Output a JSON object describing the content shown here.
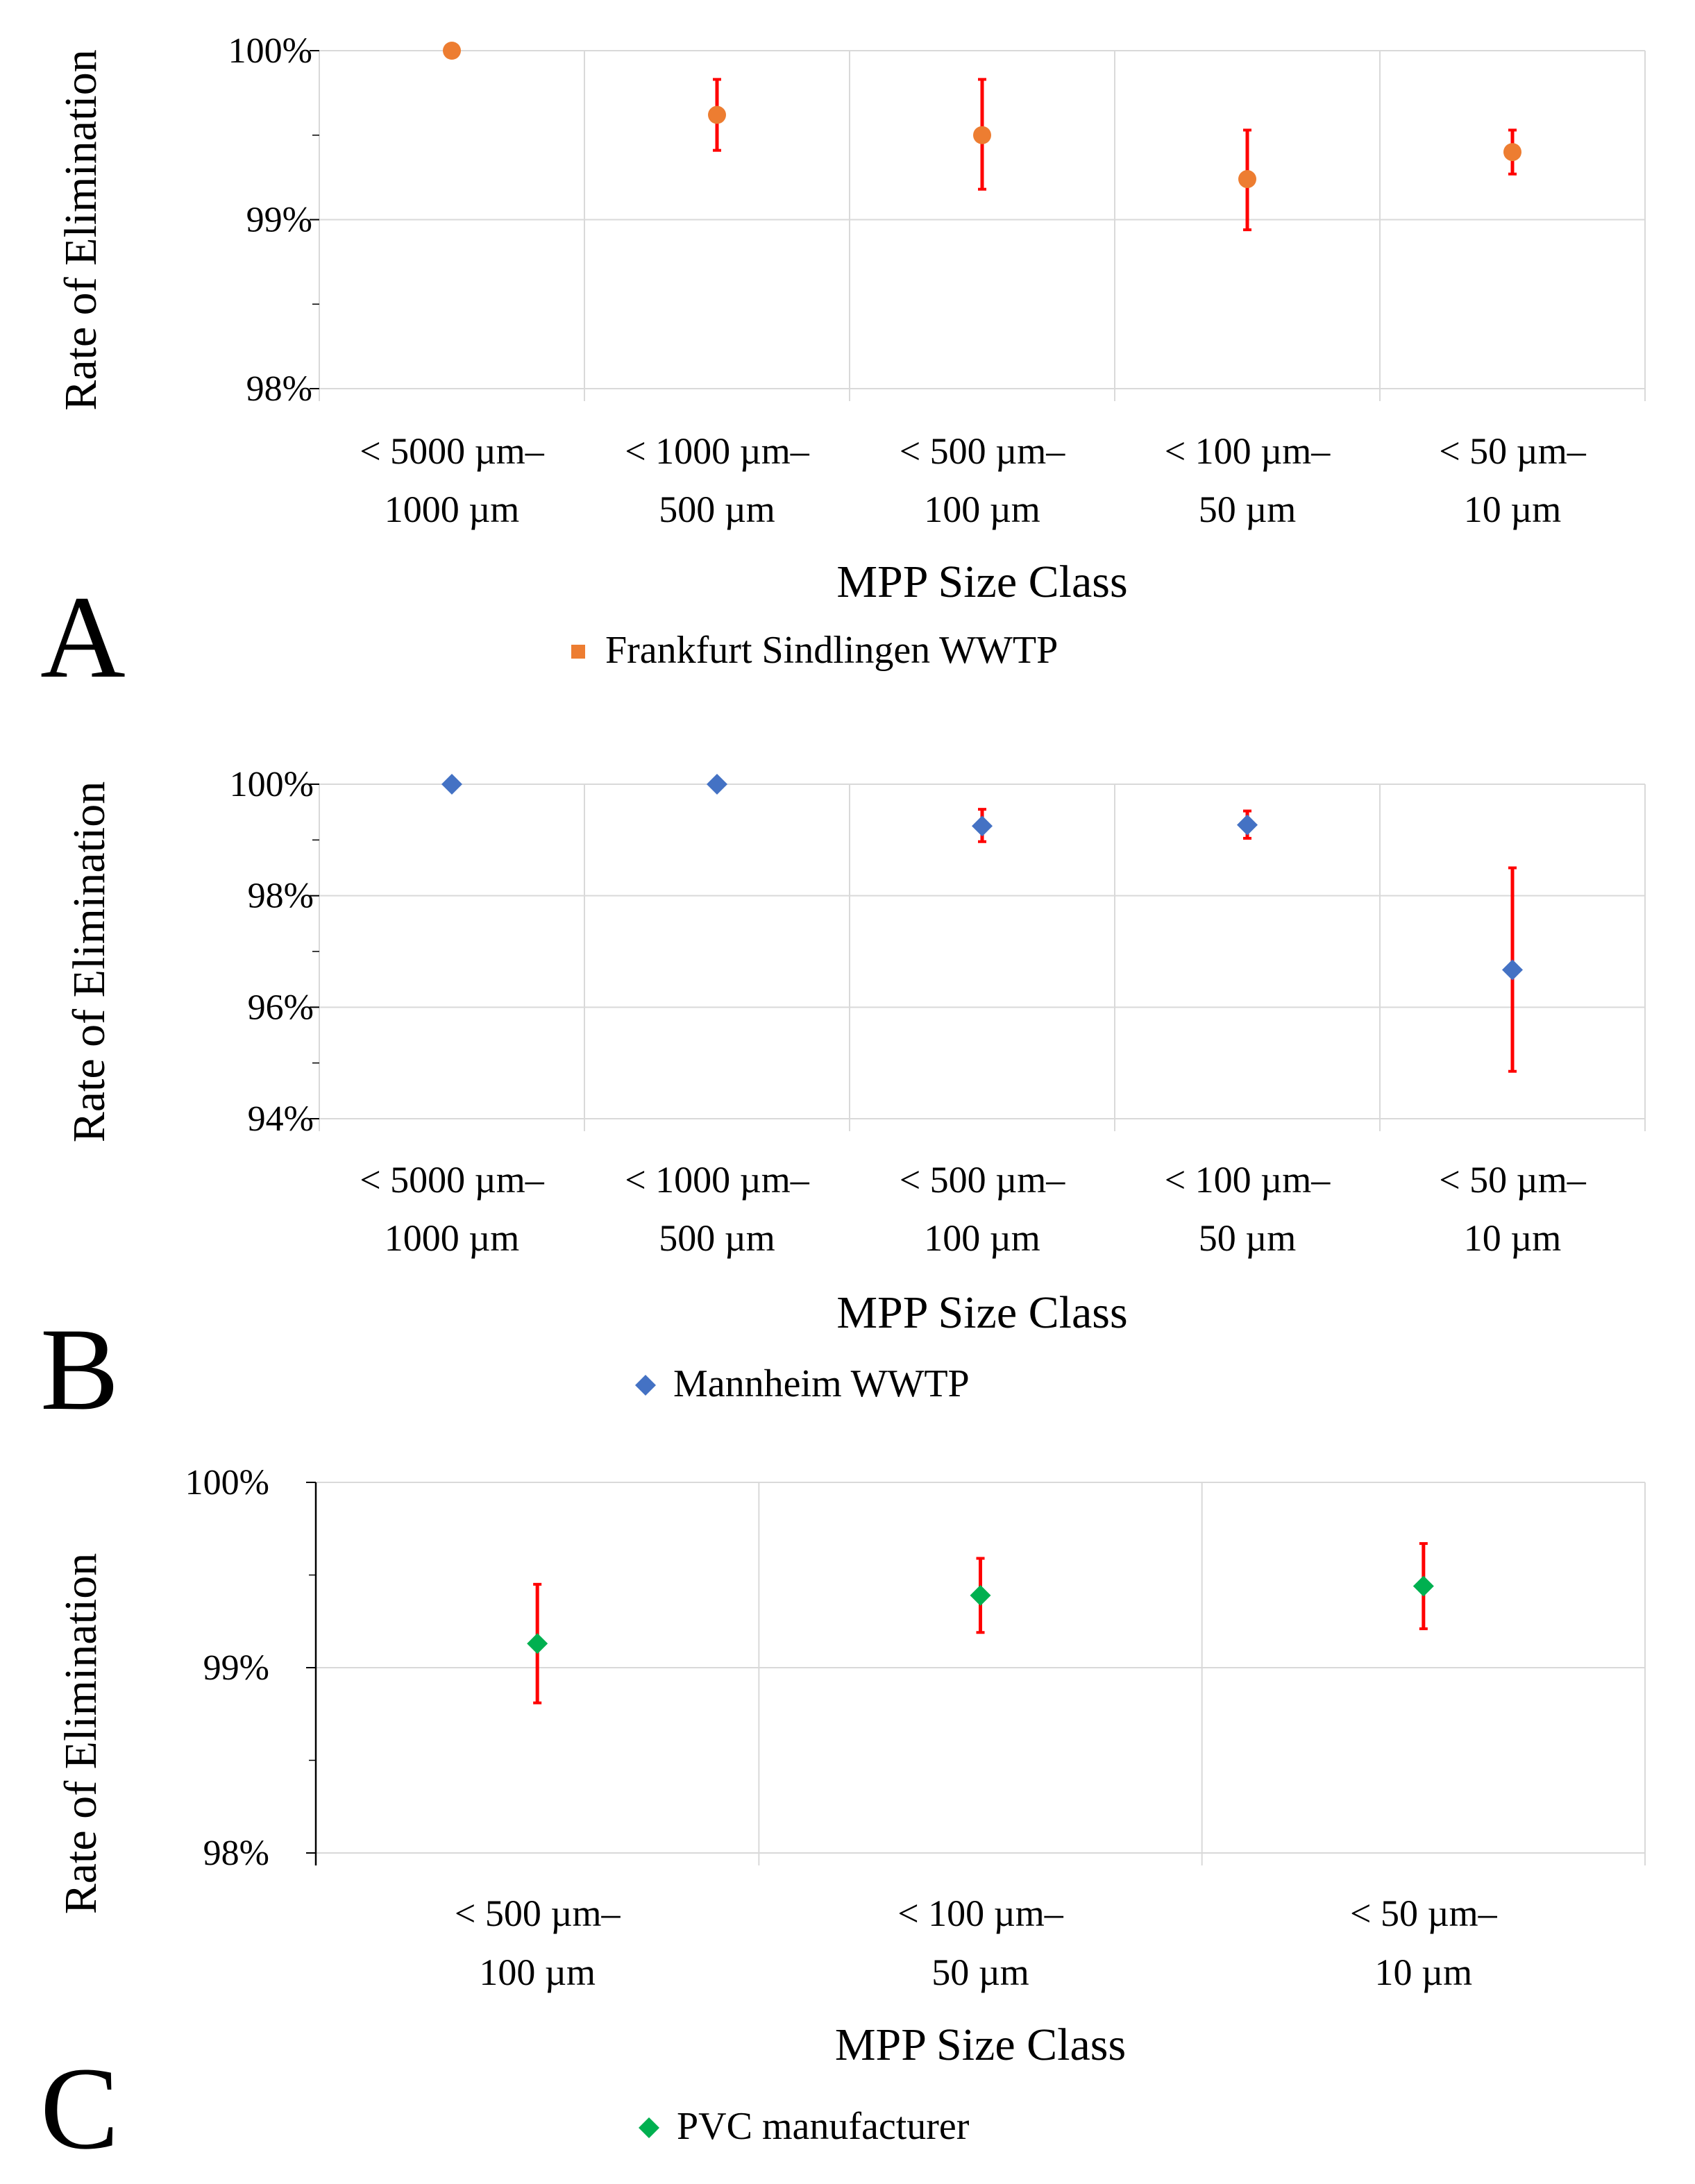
{
  "chart_data": [
    {
      "type": "scatter",
      "panel": "A",
      "ylabel": "Rate of Elimination",
      "xlabel": "MPP Size Class",
      "ylim": [
        98,
        100
      ],
      "yticks": [
        98,
        99,
        100
      ],
      "ytick_labels": [
        "98%",
        "99%",
        "100%"
      ],
      "categories": [
        [
          "< 5000 µm–",
          "1000 µm"
        ],
        [
          "< 1000 µm–",
          "500 µm"
        ],
        [
          "< 500 µm–",
          "100 µm"
        ],
        [
          "< 100 µm–",
          "50 µm"
        ],
        [
          "< 50 µm–",
          "10 µm"
        ]
      ],
      "series": [
        {
          "name": "Frankfurt Sindlingen WWTP",
          "marker": "circle",
          "legend_marker": "square",
          "color": "#ED7D31",
          "values": [
            100.0,
            99.62,
            99.5,
            99.24,
            99.4
          ],
          "err_low": [
            100.0,
            99.41,
            99.18,
            98.94,
            99.27
          ],
          "err_high": [
            100.0,
            99.83,
            99.83,
            99.53,
            99.53
          ]
        }
      ],
      "error_color": "#FF0000",
      "grid": true,
      "legend": "bottom"
    },
    {
      "type": "scatter",
      "panel": "B",
      "ylabel": "Rate of Elimination",
      "xlabel": "MPP Size Class",
      "ylim": [
        94,
        100
      ],
      "yticks": [
        94,
        96,
        98,
        100
      ],
      "ytick_labels": [
        "94%",
        "96%",
        "98%",
        "100%"
      ],
      "categories": [
        [
          "< 5000 µm–",
          "1000 µm"
        ],
        [
          "< 1000 µm–",
          "500 µm"
        ],
        [
          "< 500 µm–",
          "100 µm"
        ],
        [
          "< 100 µm–",
          "50 µm"
        ],
        [
          "< 50 µm–",
          "10 µm"
        ]
      ],
      "series": [
        {
          "name": "Mannheim WWTP",
          "marker": "diamond",
          "legend_marker": "diamond",
          "color": "#4472C4",
          "values": [
            100.0,
            100.0,
            99.25,
            99.27,
            96.67
          ],
          "err_low": [
            100.0,
            100.0,
            98.97,
            99.03,
            94.85
          ],
          "err_high": [
            100.0,
            100.0,
            99.55,
            99.52,
            98.5
          ]
        }
      ],
      "error_color": "#FF0000",
      "grid": true,
      "legend": "bottom"
    },
    {
      "type": "scatter",
      "panel": "C",
      "ylabel": "Rate of Elimination",
      "xlabel": "MPP Size Class",
      "ylim": [
        98,
        100
      ],
      "yticks": [
        98,
        99,
        100
      ],
      "ytick_labels": [
        "98%",
        "99%",
        "100%"
      ],
      "categories": [
        [
          "< 500 µm–",
          "100 µm"
        ],
        [
          "< 100 µm–",
          "50 µm"
        ],
        [
          "< 50 µm–",
          "10 µm"
        ]
      ],
      "series": [
        {
          "name": "PVC manufacturer",
          "marker": "diamond",
          "legend_marker": "diamond",
          "color": "#00B050",
          "values": [
            99.13,
            99.39,
            99.44
          ],
          "err_low": [
            98.81,
            99.19,
            99.21
          ],
          "err_high": [
            99.45,
            99.59,
            99.67
          ]
        }
      ],
      "error_color": "#FF0000",
      "grid": true,
      "legend": "bottom"
    }
  ]
}
